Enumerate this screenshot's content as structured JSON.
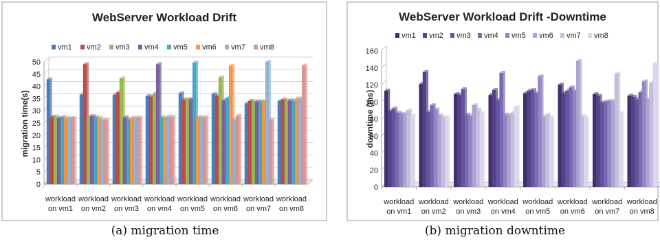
{
  "captions": [
    "(a) migration time",
    "(b) migration downtime"
  ],
  "chart_data": [
    {
      "type": "bar",
      "title": "WebServer Workload Drift",
      "xlabel": "",
      "ylabel": "migration time(s)",
      "ylim": [
        0,
        50
      ],
      "yticks": [
        0,
        5,
        10,
        15,
        20,
        25,
        30,
        35,
        40,
        45,
        50
      ],
      "grid": true,
      "legend_position": "top",
      "categories": [
        [
          "workload",
          "on vm1"
        ],
        [
          "workload",
          "on vm2"
        ],
        [
          "workload",
          "on vm3"
        ],
        [
          "workload",
          "on vm4"
        ],
        [
          "workload",
          "on vm5"
        ],
        [
          "workload",
          "on vm6"
        ],
        [
          "workload",
          "on vm7"
        ],
        [
          "workload",
          "on vm8"
        ]
      ],
      "series": [
        {
          "name": "vm1",
          "color": "#4a7ebb",
          "values": [
            42.8,
            36.6,
            36.5,
            36.0,
            37.2,
            36.8,
            33.0,
            34.0
          ]
        },
        {
          "name": "vm2",
          "color": "#be4b48",
          "values": [
            27.5,
            49.0,
            37.5,
            35.7,
            34.5,
            36.0,
            34.0,
            34.5
          ]
        },
        {
          "name": "vm3",
          "color": "#98b954",
          "values": [
            27.6,
            27.7,
            43.2,
            37.0,
            34.8,
            43.6,
            33.8,
            34.3
          ]
        },
        {
          "name": "vm4",
          "color": "#7d60a0",
          "values": [
            27.0,
            27.8,
            27.3,
            49.0,
            34.8,
            34.2,
            33.8,
            34.2
          ]
        },
        {
          "name": "vm5",
          "color": "#46aac5",
          "values": [
            27.4,
            27.4,
            26.3,
            27.2,
            49.6,
            35.2,
            33.8,
            34.0
          ]
        },
        {
          "name": "vm6",
          "color": "#f79646",
          "values": [
            27.0,
            27.1,
            27.1,
            27.0,
            27.5,
            48.3,
            34.0,
            35.0
          ]
        },
        {
          "name": "vm7",
          "color": "#95b3d7",
          "values": [
            27.0,
            26.3,
            27.1,
            27.6,
            27.4,
            26.5,
            50.0,
            35.0
          ]
        },
        {
          "name": "vm8",
          "color": "#d99694",
          "values": [
            27.0,
            26.2,
            27.2,
            27.5,
            27.3,
            28.0,
            26.3,
            48.5
          ]
        }
      ]
    },
    {
      "type": "bar",
      "title": "WebServer Workload Drift -Downtime",
      "xlabel": "",
      "ylabel": "downtime (ms)",
      "ylim": [
        0,
        160
      ],
      "yticks": [
        0,
        20,
        40,
        60,
        80,
        100,
        120,
        140,
        160
      ],
      "grid": false,
      "legend_position": "top",
      "categories": [
        [
          "workload",
          "on vm1"
        ],
        [
          "workload",
          "on vm2"
        ],
        [
          "workload",
          "on vm3"
        ],
        [
          "workload",
          "on vm4"
        ],
        [
          "workload",
          "on vm5"
        ],
        [
          "workload",
          "on vm6"
        ],
        [
          "workload",
          "on vm7"
        ],
        [
          "workload",
          "on vm8"
        ]
      ],
      "series": [
        {
          "name": "vm1",
          "color": "#3f2f6e",
          "values": [
            113,
            121,
            109,
            108,
            110,
            120,
            109,
            107
          ]
        },
        {
          "name": "vm2",
          "color": "#54418a",
          "values": [
            89,
            135,
            108,
            114,
            113,
            110,
            107,
            106
          ]
        },
        {
          "name": "vm3",
          "color": "#6653a0",
          "values": [
            92,
            88,
            115,
            102,
            114,
            113,
            99,
            103
          ]
        },
        {
          "name": "vm4",
          "color": "#7b68b4",
          "values": [
            87,
            96,
            85,
            134,
            110,
            117,
            100,
            111
          ]
        },
        {
          "name": "vm5",
          "color": "#9587c6",
          "values": [
            86,
            91,
            83,
            85,
            130,
            113,
            101,
            124
          ]
        },
        {
          "name": "vm6",
          "color": "#aea3d4",
          "values": [
            86,
            84,
            96,
            84,
            82,
            148,
            101,
            103
          ]
        },
        {
          "name": "vm7",
          "color": "#c6bee2",
          "values": [
            90,
            82,
            91,
            87,
            85,
            83,
            133,
            122
          ]
        },
        {
          "name": "vm8",
          "color": "#dcd7ee",
          "values": [
            84,
            82,
            87,
            94,
            82,
            82,
            87,
            145
          ]
        }
      ]
    }
  ]
}
